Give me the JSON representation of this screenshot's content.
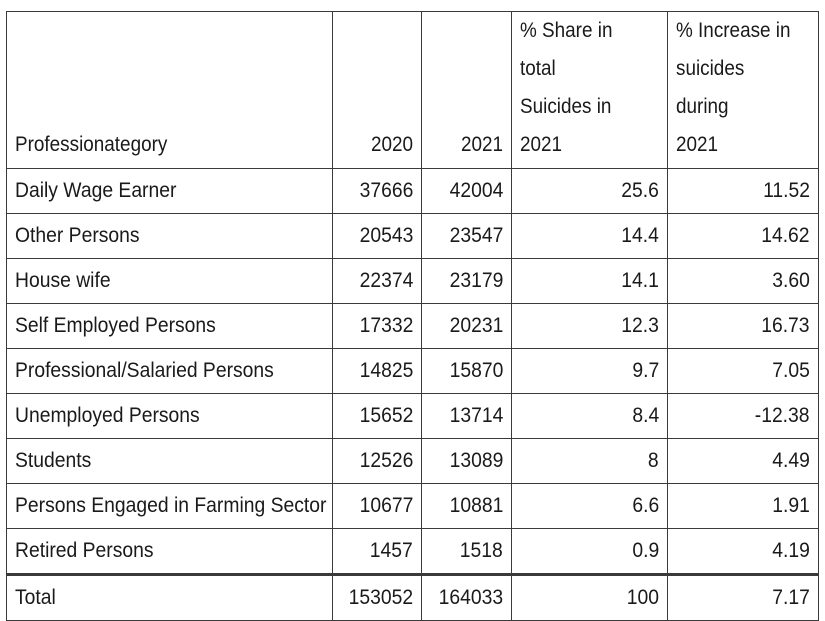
{
  "table": {
    "headers": {
      "category": "Professionategory",
      "y2020": "2020",
      "y2021": "2021",
      "share_line1": "% Share in total",
      "share_line2": "Suicides in",
      "share_line3": "2021",
      "increase_line1": "% Increase in",
      "increase_line2": "suicides during",
      "increase_line3": "2021"
    },
    "rows": [
      {
        "category": "Daily Wage Earner",
        "y2020": "37666",
        "y2021": "42004",
        "share": "25.6",
        "increase": "11.52"
      },
      {
        "category": "Other Persons",
        "y2020": "20543",
        "y2021": "23547",
        "share": "14.4",
        "increase": "14.62"
      },
      {
        "category": "House wife",
        "y2020": "22374",
        "y2021": "23179",
        "share": "14.1",
        "increase": "3.60"
      },
      {
        "category": "Self Employed Persons",
        "y2020": "17332",
        "y2021": "20231",
        "share": "12.3",
        "increase": "16.73"
      },
      {
        "category": "Professional/Salaried Persons",
        "y2020": "14825",
        "y2021": "15870",
        "share": "9.7",
        "increase": "7.05"
      },
      {
        "category": "Unemployed Persons",
        "y2020": "15652",
        "y2021": "13714",
        "share": "8.4",
        "increase": "-12.38"
      },
      {
        "category": "Students",
        "y2020": "12526",
        "y2021": "13089",
        "share": "8",
        "increase": "4.49"
      },
      {
        "category": "Persons Engaged in Farming Sector",
        "y2020": "10677",
        "y2021": "10881",
        "share": "6.6",
        "increase": "1.91"
      },
      {
        "category": "Retired Persons",
        "y2020": "1457",
        "y2021": "1518",
        "share": "0.9",
        "increase": "4.19"
      }
    ],
    "total": {
      "category": "Total",
      "y2020": "153052",
      "y2021": "164033",
      "share": "100",
      "increase": "7.17"
    }
  }
}
